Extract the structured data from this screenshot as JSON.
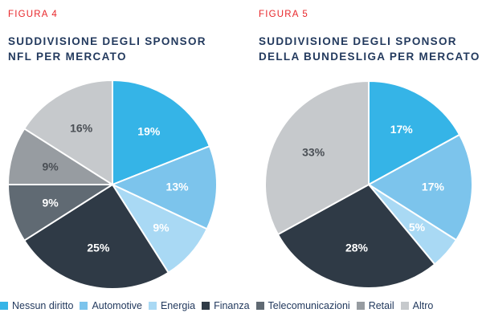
{
  "legend": [
    {
      "name": "Nessun diritto",
      "color": "#35b4e7"
    },
    {
      "name": "Automotive",
      "color": "#7cc4ec"
    },
    {
      "name": "Energia",
      "color": "#a9d9f4"
    },
    {
      "name": "Finanza",
      "color": "#2f3a46"
    },
    {
      "name": "Telecomunicazioni",
      "color": "#606a73"
    },
    {
      "name": "Retail",
      "color": "#979ca1"
    },
    {
      "name": "Altro",
      "color": "#c6c9cc"
    }
  ],
  "chart_data": [
    {
      "type": "pie",
      "figure_label": "FIGURA 4",
      "title_lines": [
        "SUDDIVISIONE DEGLI SPONSOR",
        "NFL PER MERCATO"
      ],
      "categories": [
        "Nessun diritto",
        "Automotive",
        "Energia",
        "Finanza",
        "Telecomunicazioni",
        "Retail",
        "Altro"
      ],
      "values": [
        19,
        13,
        9,
        25,
        9,
        9,
        16
      ],
      "labels": [
        "19%",
        "13%",
        "9%",
        "25%",
        "9%",
        "9%",
        "16%"
      ],
      "start": "12 o'clock",
      "direction": "clockwise"
    },
    {
      "type": "pie",
      "figure_label": "FIGURA 5",
      "title_lines": [
        "SUDDIVISIONE DEGLI SPONSOR",
        "DELLA BUNDESLIGA PER MERCATO"
      ],
      "categories": [
        "Nessun diritto",
        "Automotive",
        "Energia",
        "Finanza",
        "Altro"
      ],
      "values": [
        17,
        17,
        5,
        28,
        33
      ],
      "labels": [
        "17%",
        "17%",
        "5%",
        "28%",
        "33%"
      ],
      "start": "12 o'clock",
      "direction": "clockwise"
    }
  ]
}
